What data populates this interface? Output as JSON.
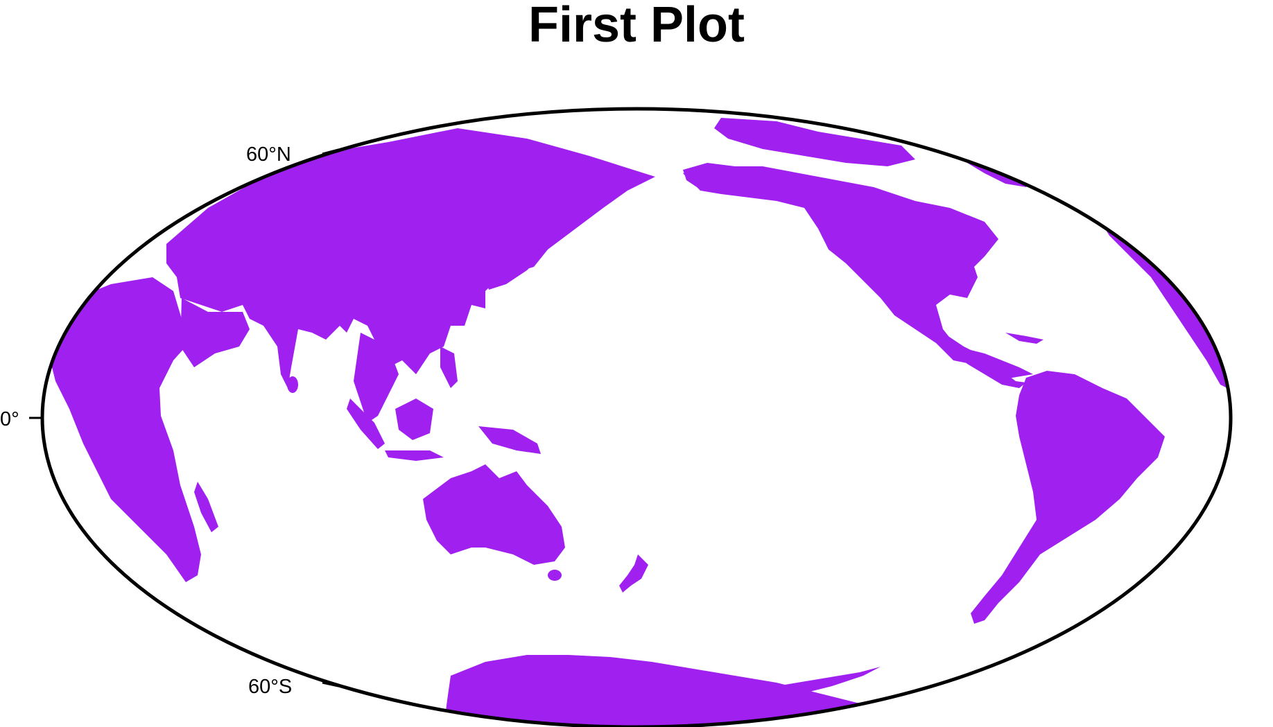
{
  "title": "First Plot",
  "map": {
    "projection": "Hammer / Mollweide (Pacific-centered)",
    "land_color": "#A020F0",
    "ocean_color": "#FFFFFF",
    "frame_color": "#000000",
    "lat_labels": {
      "north60": "60°N",
      "equator": "0°",
      "south60": "60°S"
    },
    "landmasses": [
      "Eurasia",
      "Africa",
      "Australia",
      "New Zealand",
      "North America",
      "South America",
      "Greenland",
      "Antarctica",
      "Indonesia",
      "Japan",
      "Madagascar"
    ]
  }
}
